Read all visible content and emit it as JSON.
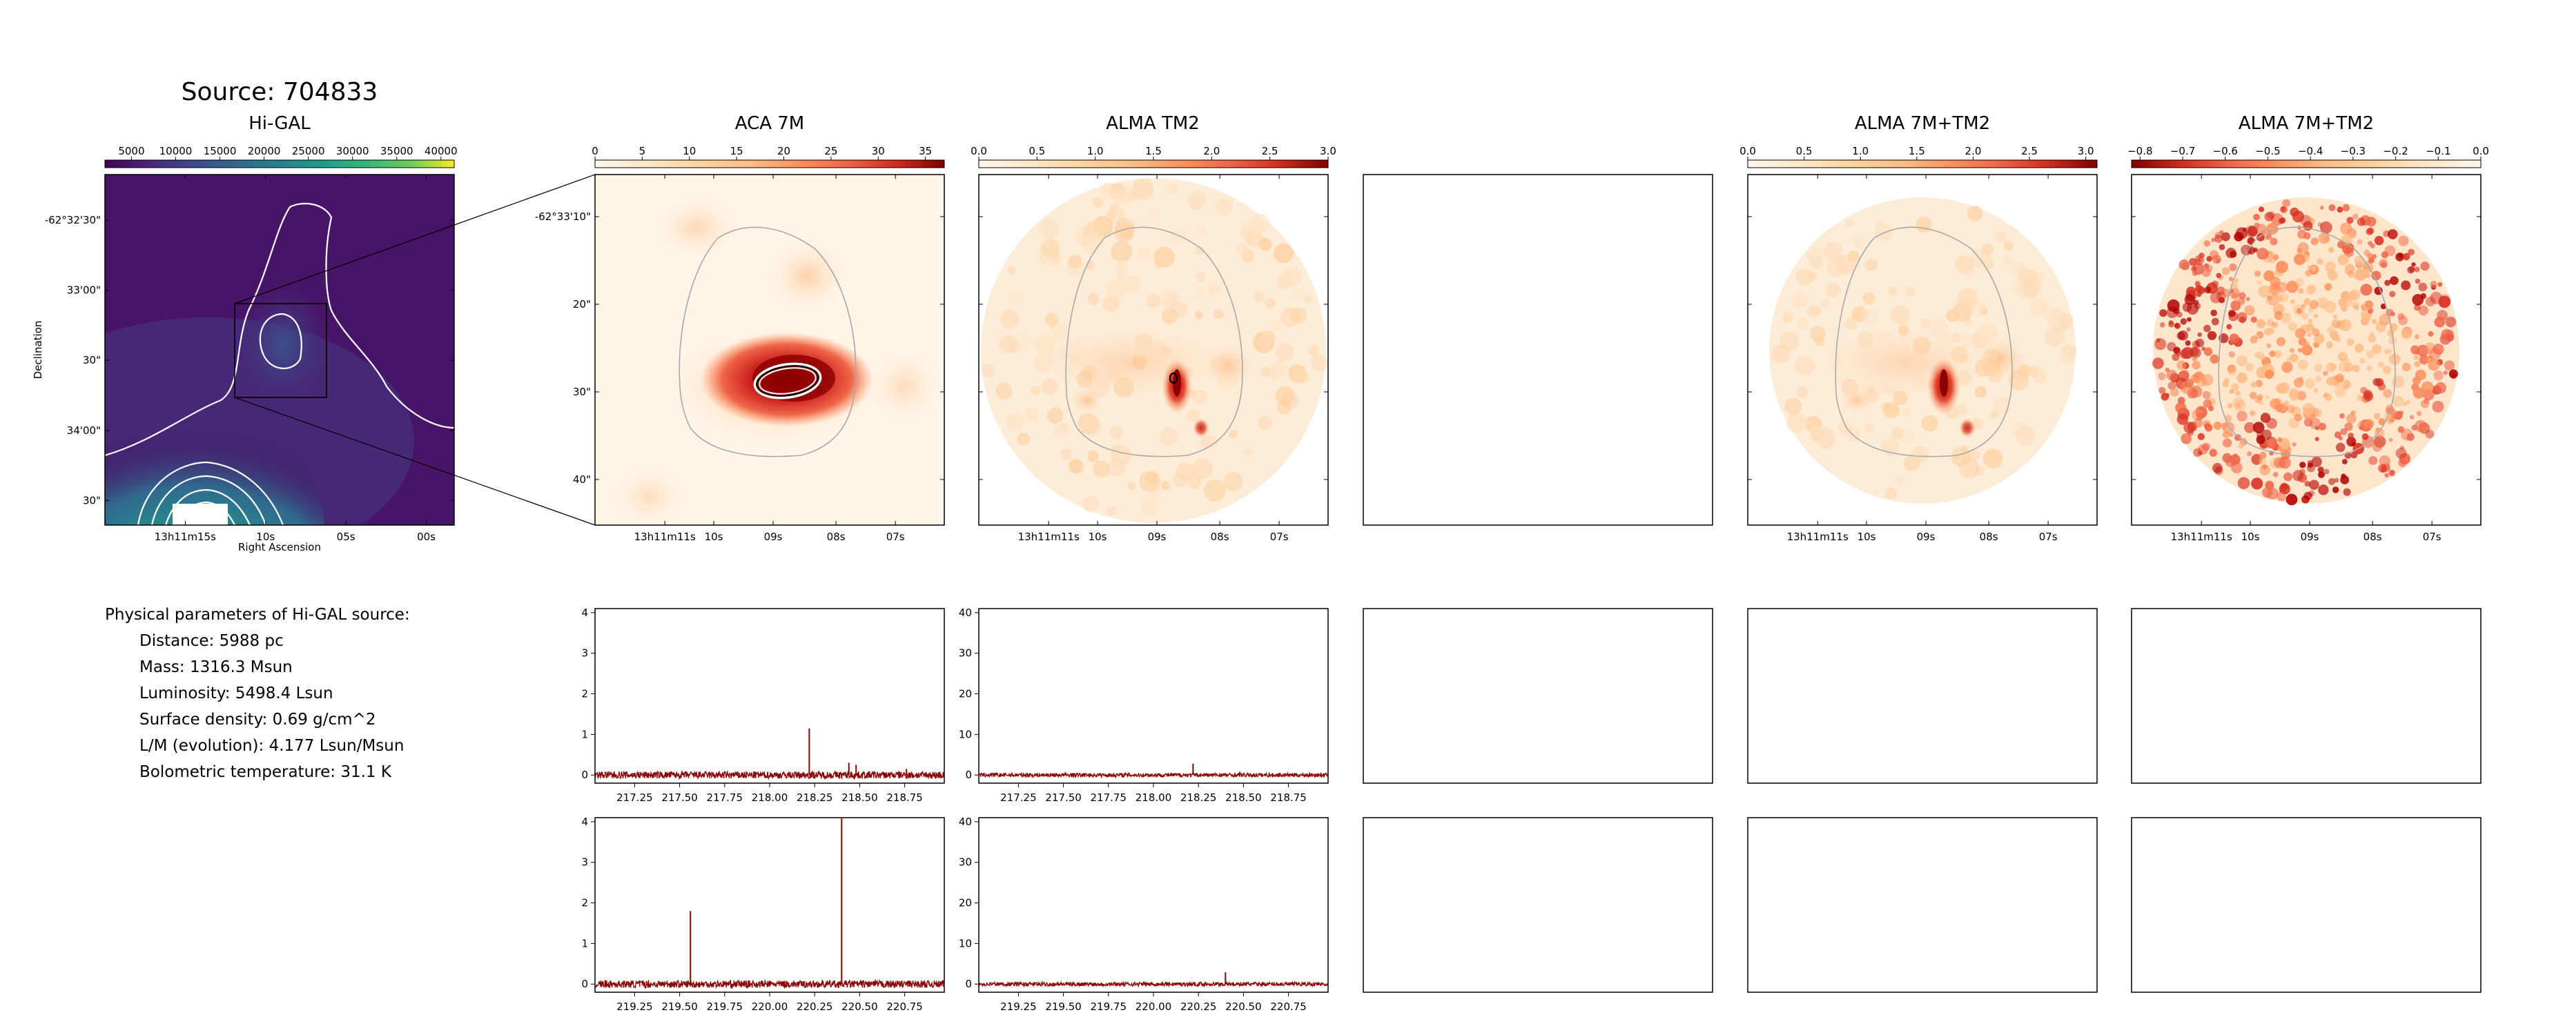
{
  "figure": {
    "source_title": "Source: 704833",
    "params_header": "Physical parameters of Hi-GAL source:",
    "params": [
      "Distance: 5988 pc",
      "Mass: 1316.3 Msun",
      "Luminosity: 5498.4 Lsun",
      "Surface density: 0.69 g/cm^2",
      "L/M (evolution): 4.177 Lsun/Msun",
      "Bolometric temperature: 31.1 K"
    ]
  },
  "chart_data": [
    {
      "type": "heatmap",
      "panel": "higal",
      "title": "Hi-GAL",
      "colormap": "viridis",
      "colorbar_ticks": [
        "5000",
        "10000",
        "15000",
        "20000",
        "25000",
        "30000",
        "35000",
        "40000"
      ],
      "colorbar_range": [
        2000,
        41500
      ],
      "xlabel": "Right Ascension",
      "ylabel": "Declination",
      "x_ticks": [
        "13h11m15s",
        "10s",
        "05s",
        "00s"
      ],
      "y_ticks": [
        "-62°32'30\"",
        "33'00\"",
        "30\"",
        "34'00\"",
        "30\""
      ],
      "contours": "white",
      "inset_box": true
    },
    {
      "type": "heatmap",
      "panel": "aca7m",
      "title": "ACA 7M",
      "colormap": "OrRd",
      "colorbar_ticks": [
        "0",
        "5",
        "10",
        "15",
        "20",
        "25",
        "30",
        "35"
      ],
      "colorbar_range": [
        0,
        37
      ],
      "x_ticks": [
        "13h11m11s",
        "10s",
        "09s",
        "08s",
        "07s"
      ],
      "y_ticks": [
        "-62°33'10\"",
        "20\"",
        "30\"",
        "40\""
      ]
    },
    {
      "type": "heatmap",
      "panel": "tm2",
      "title": "ALMA TM2",
      "colormap": "OrRd",
      "colorbar_ticks": [
        "0.0",
        "0.5",
        "1.0",
        "1.5",
        "2.0",
        "2.5",
        "3.0"
      ],
      "colorbar_range": [
        0,
        3.0
      ],
      "x_ticks": [
        "13h11m11s",
        "10s",
        "09s",
        "08s",
        "07s"
      ]
    },
    {
      "type": "heatmap",
      "panel": "combined",
      "title": "ALMA 7M+TM2",
      "colormap": "OrRd",
      "colorbar_ticks": [
        "0.0",
        "0.5",
        "1.0",
        "1.5",
        "2.0",
        "2.5",
        "3.0"
      ],
      "colorbar_range": [
        0,
        3.1
      ],
      "x_ticks": [
        "13h11m11s",
        "10s",
        "09s",
        "08s",
        "07s"
      ]
    },
    {
      "type": "heatmap",
      "panel": "residual",
      "title": "ALMA 7M+TM2",
      "colormap": "OrRd_r",
      "colorbar_ticks": [
        "−0.8",
        "−0.7",
        "−0.6",
        "−0.5",
        "−0.4",
        "−0.3",
        "−0.2",
        "−0.1",
        "0.0"
      ],
      "colorbar_range": [
        -0.82,
        0
      ],
      "x_ticks": [
        "13h11m11s",
        "10s",
        "09s",
        "08s",
        "07s"
      ]
    },
    {
      "type": "line",
      "panel": "spec_aca_1",
      "x_ticks": [
        "217.25",
        "217.50",
        "217.75",
        "218.00",
        "218.25",
        "218.50",
        "218.75"
      ],
      "xlim": [
        217.03,
        218.97
      ],
      "y_ticks": [
        "0",
        "1",
        "2",
        "3",
        "4"
      ],
      "ylim": [
        -0.2,
        4.1
      ],
      "peaks": [
        {
          "x": 218.22,
          "y": 1.15
        },
        {
          "x": 218.44,
          "y": 0.3
        },
        {
          "x": 218.48,
          "y": 0.25
        },
        {
          "x": 218.76,
          "y": 0.15
        }
      ]
    },
    {
      "type": "line",
      "panel": "spec_tm2_1",
      "x_ticks": [
        "217.25",
        "217.50",
        "217.75",
        "218.00",
        "218.25",
        "218.50",
        "218.75"
      ],
      "xlim": [
        217.03,
        218.97
      ],
      "y_ticks": [
        "0",
        "10",
        "20",
        "30",
        "40"
      ],
      "ylim": [
        -2,
        41
      ],
      "peaks": [
        {
          "x": 218.22,
          "y": 2.8
        },
        {
          "x": 218.48,
          "y": 0.8
        }
      ]
    },
    {
      "type": "line",
      "panel": "spec_aca_2",
      "x_ticks": [
        "219.25",
        "219.50",
        "219.75",
        "220.00",
        "220.25",
        "220.50",
        "220.75"
      ],
      "xlim": [
        219.03,
        220.97
      ],
      "y_ticks": [
        "0",
        "1",
        "2",
        "3",
        "4"
      ],
      "ylim": [
        -0.2,
        4.1
      ],
      "peaks": [
        {
          "x": 219.56,
          "y": 1.8
        },
        {
          "x": 220.4,
          "y": 4.1
        }
      ]
    },
    {
      "type": "line",
      "panel": "spec_tm2_2",
      "x_ticks": [
        "219.25",
        "219.50",
        "219.75",
        "220.00",
        "220.25",
        "220.50",
        "220.75"
      ],
      "xlim": [
        219.03,
        220.97
      ],
      "y_ticks": [
        "0",
        "10",
        "20",
        "30",
        "40"
      ],
      "ylim": [
        -2,
        41
      ],
      "peaks": [
        {
          "x": 220.4,
          "y": 2.9
        }
      ]
    }
  ]
}
